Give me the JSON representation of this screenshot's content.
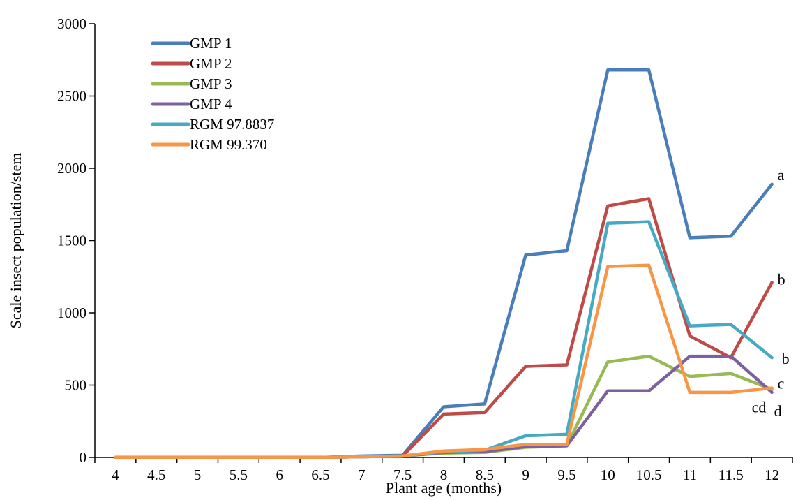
{
  "chart_data": {
    "type": "line",
    "title": "",
    "xlabel": "Plant age (months)",
    "ylabel": "Scale insect population/stem",
    "x": [
      4,
      4.5,
      5,
      5.5,
      6,
      6.5,
      7,
      7.5,
      8,
      8.5,
      9,
      9.5,
      10,
      10.5,
      11,
      11.5,
      12
    ],
    "x_tick_labels": [
      "4",
      "4.5",
      "5",
      "5.5",
      "6",
      "6.5",
      "7",
      "7.5",
      "8",
      "8.5",
      "9",
      "9.5",
      "10",
      "10.5",
      "11",
      "11.5",
      "12"
    ],
    "ylim": [
      0,
      3000
    ],
    "y_ticks": [
      0,
      500,
      1000,
      1500,
      2000,
      2500,
      3000
    ],
    "grid": false,
    "legend_position": "top-left",
    "series": [
      {
        "name": "GMP 1",
        "color": "#4a7ebb",
        "values": [
          0,
          0,
          0,
          0,
          0,
          0,
          10,
          15,
          350,
          370,
          1400,
          1430,
          2680,
          2680,
          1520,
          1530,
          1890
        ]
      },
      {
        "name": "GMP 2",
        "color": "#be4b48",
        "values": [
          0,
          0,
          0,
          0,
          0,
          0,
          5,
          10,
          300,
          310,
          630,
          640,
          1740,
          1790,
          840,
          690,
          1210
        ]
      },
      {
        "name": "GMP 3",
        "color": "#98b954",
        "values": [
          0,
          0,
          0,
          0,
          0,
          0,
          5,
          10,
          30,
          35,
          70,
          80,
          660,
          700,
          560,
          580,
          470
        ]
      },
      {
        "name": "GMP 4",
        "color": "#7d60a0",
        "values": [
          0,
          0,
          0,
          0,
          0,
          0,
          5,
          10,
          35,
          40,
          75,
          80,
          460,
          460,
          700,
          700,
          450
        ]
      },
      {
        "name": "RGM 97.8837",
        "color": "#46aac5",
        "values": [
          0,
          0,
          0,
          0,
          0,
          0,
          5,
          10,
          40,
          50,
          150,
          160,
          1620,
          1630,
          910,
          920,
          690
        ]
      },
      {
        "name": "RGM 99.370",
        "color": "#f79646",
        "values": [
          0,
          0,
          0,
          0,
          0,
          0,
          5,
          10,
          45,
          55,
          90,
          90,
          1320,
          1330,
          450,
          450,
          480
        ]
      }
    ],
    "annotations": [
      {
        "text": "a",
        "series": "GMP 1"
      },
      {
        "text": "b",
        "series": "GMP 2"
      },
      {
        "text": "b",
        "series": "RGM 97.8837"
      },
      {
        "text": "c",
        "series": "RGM 99.370"
      },
      {
        "text": "cd",
        "series": "GMP 3"
      },
      {
        "text": "d",
        "series": "GMP 4"
      }
    ]
  }
}
